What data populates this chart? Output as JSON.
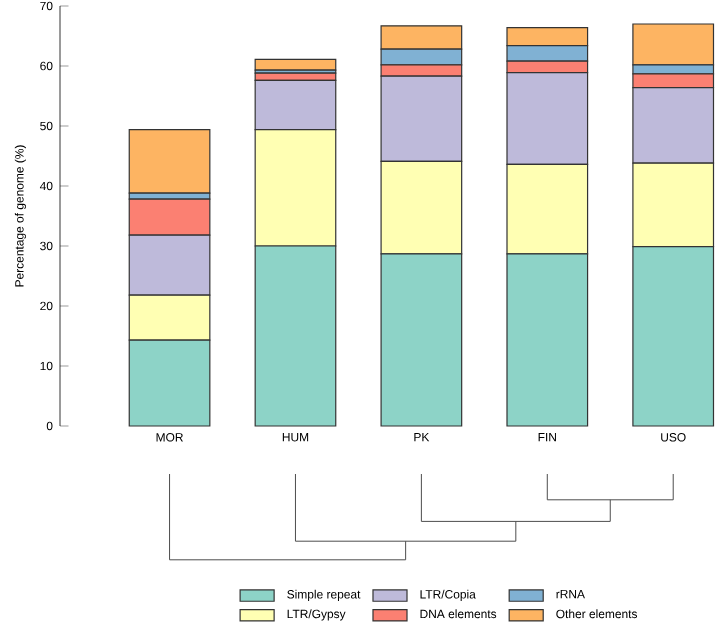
{
  "chart_data": {
    "type": "bar",
    "stacked": true,
    "ylabel": "Percentage of genome (%)",
    "categories": [
      "MOR",
      "HUM",
      "PK",
      "FIN",
      "USO"
    ],
    "series": [
      {
        "name": "Simple repeat",
        "color": "#8dd3c7",
        "values": [
          14.3,
          30.0,
          28.7,
          28.7,
          29.9
        ]
      },
      {
        "name": "LTR/Gypsy",
        "color": "#ffffb3",
        "values": [
          7.5,
          19.4,
          15.4,
          14.9,
          13.9
        ]
      },
      {
        "name": "LTR/Copia",
        "color": "#bebada",
        "values": [
          10.0,
          8.2,
          14.2,
          15.3,
          12.6
        ]
      },
      {
        "name": "DNA elements",
        "color": "#fb8072",
        "values": [
          6.0,
          1.2,
          1.9,
          1.9,
          2.3
        ]
      },
      {
        "name": "rRNA",
        "color": "#80b1d3",
        "values": [
          1.0,
          0.5,
          2.6,
          2.6,
          1.5
        ]
      },
      {
        "name": "Other elements",
        "color": "#fdb462",
        "values": [
          10.6,
          1.8,
          3.9,
          3.0,
          6.8
        ]
      }
    ],
    "ylim": [
      0,
      70
    ],
    "yticks": [
      0,
      10,
      20,
      30,
      40,
      50,
      60,
      70
    ],
    "grid": false,
    "legend": "bottom"
  }
}
